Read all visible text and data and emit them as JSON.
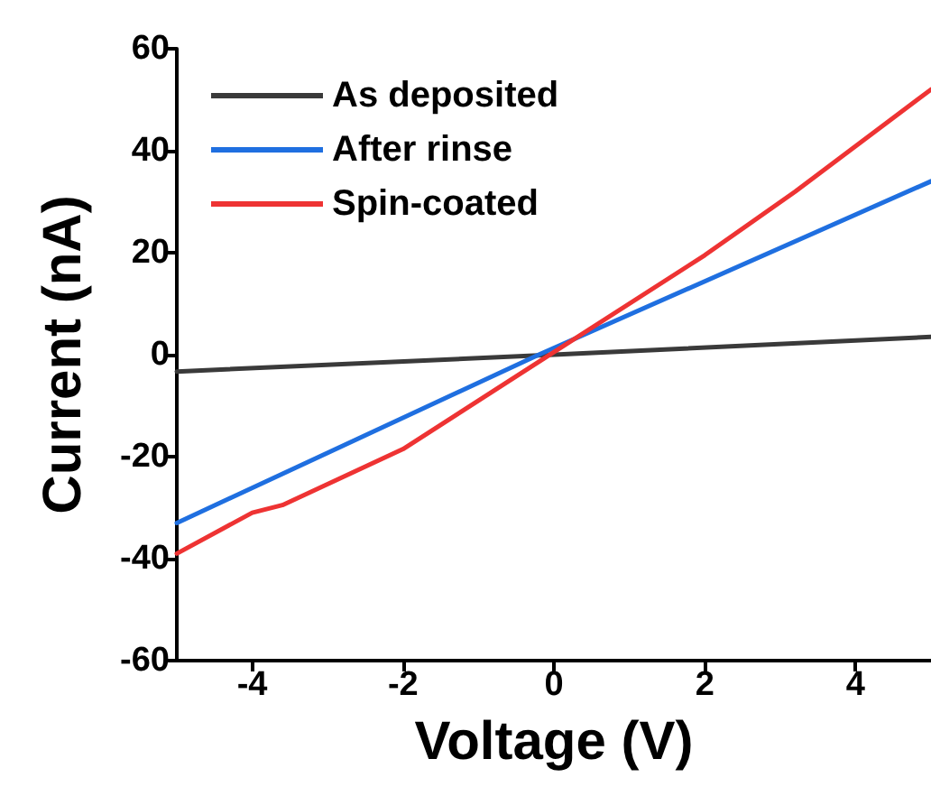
{
  "chart_data": {
    "type": "line",
    "xlabel": "Voltage (V)",
    "ylabel": "Current (nA)",
    "xlim": [
      -5,
      5
    ],
    "xticks": [
      -4,
      -2,
      0,
      2,
      4
    ],
    "ylim": [
      -60,
      60
    ],
    "yticks": [
      -60,
      -40,
      -20,
      0,
      20,
      40,
      60
    ],
    "legend": "top left",
    "grid": false,
    "marker": "none",
    "line_style": "solid",
    "series": [
      {
        "name": "As deposited",
        "color": "#3a3a3a",
        "x": [
          -5,
          0,
          5
        ],
        "values": [
          -3.3,
          0,
          3.5
        ]
      },
      {
        "name": "After rinse",
        "color": "#1f6fe0",
        "x": [
          -5,
          -0.2,
          5
        ],
        "values": [
          -33,
          0,
          34
        ]
      },
      {
        "name": "Spin-coated",
        "color": "#ee3333",
        "x": [
          -5,
          -4,
          -3.6,
          -2,
          0,
          2,
          3.2,
          5
        ],
        "values": [
          -39,
          -31,
          -29.5,
          -18.5,
          0.5,
          19.5,
          32,
          52
        ]
      }
    ]
  }
}
